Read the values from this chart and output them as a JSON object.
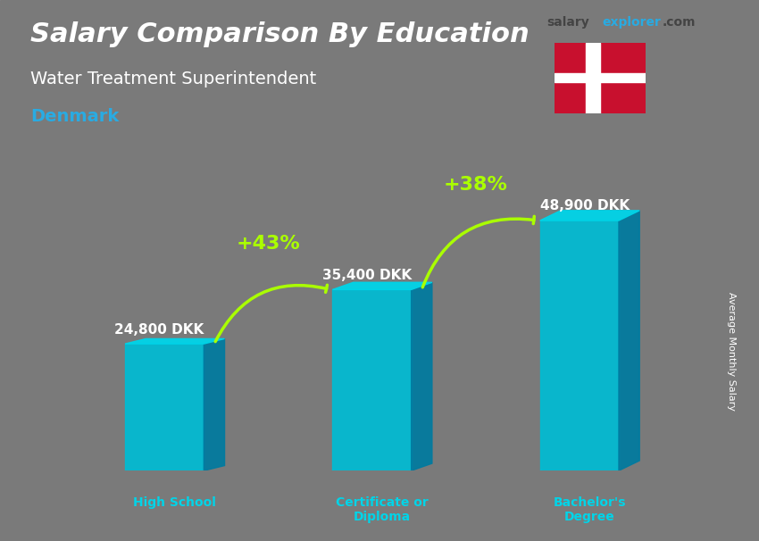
{
  "title_line1": "Salary Comparison By Education",
  "title_line2": "Water Treatment Superintendent",
  "title_line3": "Denmark",
  "brand": "salaryexplorer.com",
  "ylabel": "Average Monthly Salary",
  "categories": [
    "High School",
    "Certificate or\nDiploma",
    "Bachelor's\nDegree"
  ],
  "values": [
    24800,
    35400,
    48900
  ],
  "value_labels": [
    "24,800 DKK",
    "35,400 DKK",
    "48,900 DKK"
  ],
  "pct_labels": [
    "+43%",
    "+38%"
  ],
  "bar_color_top": "#00d4e8",
  "bar_color_bottom": "#00a8c8",
  "bar_color_face": "#00bcd4",
  "bar_color_right": "#007ba0",
  "background_color": "#c8c8c8",
  "title_color": "#ffffff",
  "subtitle_color": "#ffffff",
  "denmark_color": "#29abe2",
  "pct_color": "#aaff00",
  "value_label_color": "#ffffff",
  "xlabel_color": "#00d4e8",
  "brand_color_salary": "#555555",
  "brand_color_explorer": "#29abe2"
}
